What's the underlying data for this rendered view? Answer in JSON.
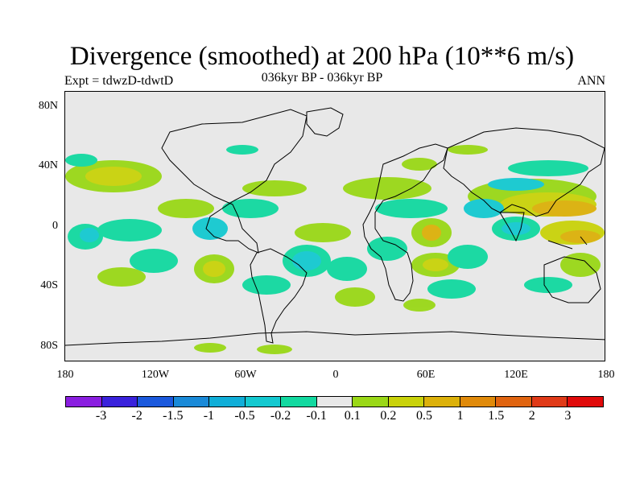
{
  "header": {
    "title": "Divergence (smoothed) at 200 hPa (10**6 m/s)",
    "experiment": "Expt = tdwzD-tdwtD",
    "period": "036kyr BP - 036kyr BP",
    "season": "ANN"
  },
  "map": {
    "lat_labels": [
      "80N",
      "40N",
      "0",
      "40S",
      "80S"
    ],
    "lon_labels": [
      "180",
      "120W",
      "60W",
      "0",
      "60E",
      "120E",
      "180"
    ],
    "lat_values": [
      80,
      40,
      0,
      -40,
      -80
    ],
    "lon_values": [
      -180,
      -120,
      -60,
      0,
      60,
      120,
      180
    ],
    "lat_range": [
      -90,
      90
    ],
    "lon_range": [
      -180,
      180
    ]
  },
  "colorbar": {
    "labels": [
      "-3",
      "-2",
      "-1.5",
      "-1",
      "-0.5",
      "-0.2",
      "-0.1",
      "0.1",
      "0.2",
      "0.5",
      "1",
      "1.5",
      "2",
      "3"
    ],
    "colors": [
      "#8a1ee0",
      "#3a22dc",
      "#1b59dd",
      "#1a8ad8",
      "#10aed8",
      "#14c9d0",
      "#12d9a0",
      "#e8e8e8",
      "#9ad817",
      "#c9d20a",
      "#dcb10a",
      "#e08a0a",
      "#e06410",
      "#e03a18",
      "#e00a0a"
    ]
  },
  "colors": {
    "neutral": "#e8e8e8",
    "coast": "#000000"
  }
}
